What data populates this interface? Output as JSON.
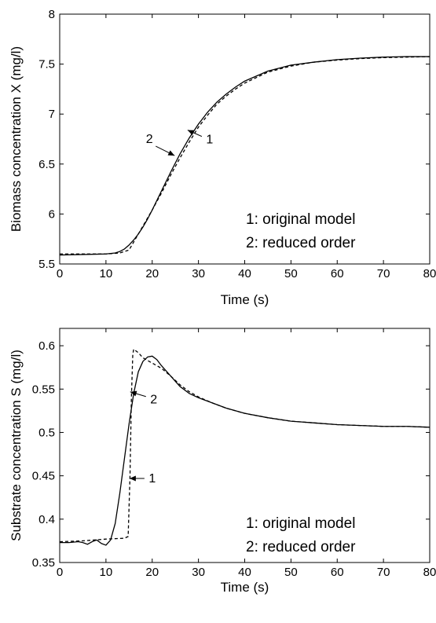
{
  "chart_data": [
    {
      "type": "line",
      "xlabel": "Time (s)",
      "ylabel": "Biomass concentration X (mg/l)",
      "xlim": [
        0,
        80
      ],
      "ylim": [
        5.5,
        8
      ],
      "xticks": [
        0,
        10,
        20,
        30,
        40,
        50,
        60,
        70,
        80
      ],
      "yticks": [
        5.5,
        6,
        6.5,
        7,
        7.5,
        8
      ],
      "ytick_labels": [
        "5.5",
        "6",
        "6.5",
        "7",
        "7.5",
        "8"
      ],
      "grid": false,
      "legend_text": [
        "1: original model",
        "2: reduced order"
      ],
      "series": [
        {
          "style": "solid",
          "x": [
            0,
            5,
            10,
            12,
            13,
            14,
            15,
            16,
            17,
            18,
            19,
            20,
            22,
            24,
            26,
            28,
            30,
            32,
            34,
            36,
            38,
            40,
            45,
            50,
            55,
            60,
            65,
            70,
            75,
            80
          ],
          "y": [
            5.59,
            5.595,
            5.6,
            5.61,
            5.625,
            5.65,
            5.69,
            5.74,
            5.8,
            5.87,
            5.95,
            6.04,
            6.23,
            6.42,
            6.6,
            6.76,
            6.9,
            7.02,
            7.12,
            7.2,
            7.27,
            7.33,
            7.43,
            7.49,
            7.52,
            7.545,
            7.56,
            7.57,
            7.575,
            7.575
          ]
        },
        {
          "style": "dashed",
          "x": [
            0,
            5,
            10,
            13,
            15,
            16,
            17,
            18,
            19,
            20,
            22,
            24,
            26,
            28,
            30,
            32,
            34,
            36,
            38,
            40,
            45,
            50,
            55,
            60,
            65,
            70,
            75,
            80
          ],
          "y": [
            5.6,
            5.6,
            5.6,
            5.61,
            5.64,
            5.72,
            5.8,
            5.88,
            5.96,
            6.04,
            6.21,
            6.39,
            6.56,
            6.72,
            6.87,
            6.99,
            7.1,
            7.18,
            7.25,
            7.31,
            7.42,
            7.48,
            7.52,
            7.54,
            7.555,
            7.565,
            7.57,
            7.575
          ]
        }
      ],
      "annotations": [
        {
          "text": "1",
          "x": 28.0,
          "y": 6.8
        },
        {
          "text": "2",
          "x": 24.5,
          "y": 6.6
        }
      ]
    },
    {
      "type": "line",
      "xlabel": "Time (s)",
      "ylabel": "Substrate concentration S (mg/l)",
      "xlim": [
        0,
        80
      ],
      "ylim": [
        0.35,
        0.62
      ],
      "xticks": [
        0,
        10,
        20,
        30,
        40,
        50,
        60,
        70,
        80
      ],
      "yticks": [
        0.35,
        0.4,
        0.45,
        0.5,
        0.55,
        0.6
      ],
      "ytick_labels": [
        "0.35",
        "0.4",
        "0.45",
        "0.5",
        "0.55",
        "0.6"
      ],
      "grid": false,
      "legend_text": [
        "1: original model",
        "2: reduced order"
      ],
      "series": [
        {
          "style": "solid",
          "x": [
            0,
            2,
            4,
            5,
            6,
            7,
            8,
            9,
            10,
            11,
            12,
            13,
            14,
            15,
            16,
            17,
            18,
            19,
            20,
            21,
            22,
            24,
            26,
            28,
            30,
            33,
            36,
            40,
            45,
            50,
            55,
            60,
            65,
            70,
            75,
            80
          ],
          "y": [
            0.373,
            0.373,
            0.374,
            0.373,
            0.371,
            0.374,
            0.376,
            0.372,
            0.37,
            0.376,
            0.395,
            0.43,
            0.47,
            0.51,
            0.545,
            0.57,
            0.582,
            0.587,
            0.588,
            0.584,
            0.577,
            0.565,
            0.553,
            0.545,
            0.54,
            0.534,
            0.528,
            0.522,
            0.517,
            0.513,
            0.511,
            0.509,
            0.508,
            0.507,
            0.507,
            0.506
          ]
        },
        {
          "style": "dashed",
          "x": [
            0,
            5,
            10,
            14,
            14.8,
            15.2,
            15.5,
            15.8,
            16,
            17,
            18,
            20,
            22,
            24,
            26,
            28,
            30,
            33,
            36,
            40,
            45,
            50,
            55,
            60,
            65,
            70,
            75,
            80
          ],
          "y": [
            0.374,
            0.375,
            0.377,
            0.378,
            0.38,
            0.45,
            0.54,
            0.59,
            0.596,
            0.592,
            0.586,
            0.58,
            0.574,
            0.565,
            0.555,
            0.547,
            0.541,
            0.534,
            0.528,
            0.522,
            0.517,
            0.513,
            0.511,
            0.509,
            0.508,
            0.507,
            0.507,
            0.506
          ]
        }
      ],
      "annotations": [
        {
          "text": "2",
          "x": 20.0,
          "y": 0.536
        },
        {
          "text": "1",
          "x": 19.0,
          "y": 0.447
        }
      ]
    }
  ]
}
